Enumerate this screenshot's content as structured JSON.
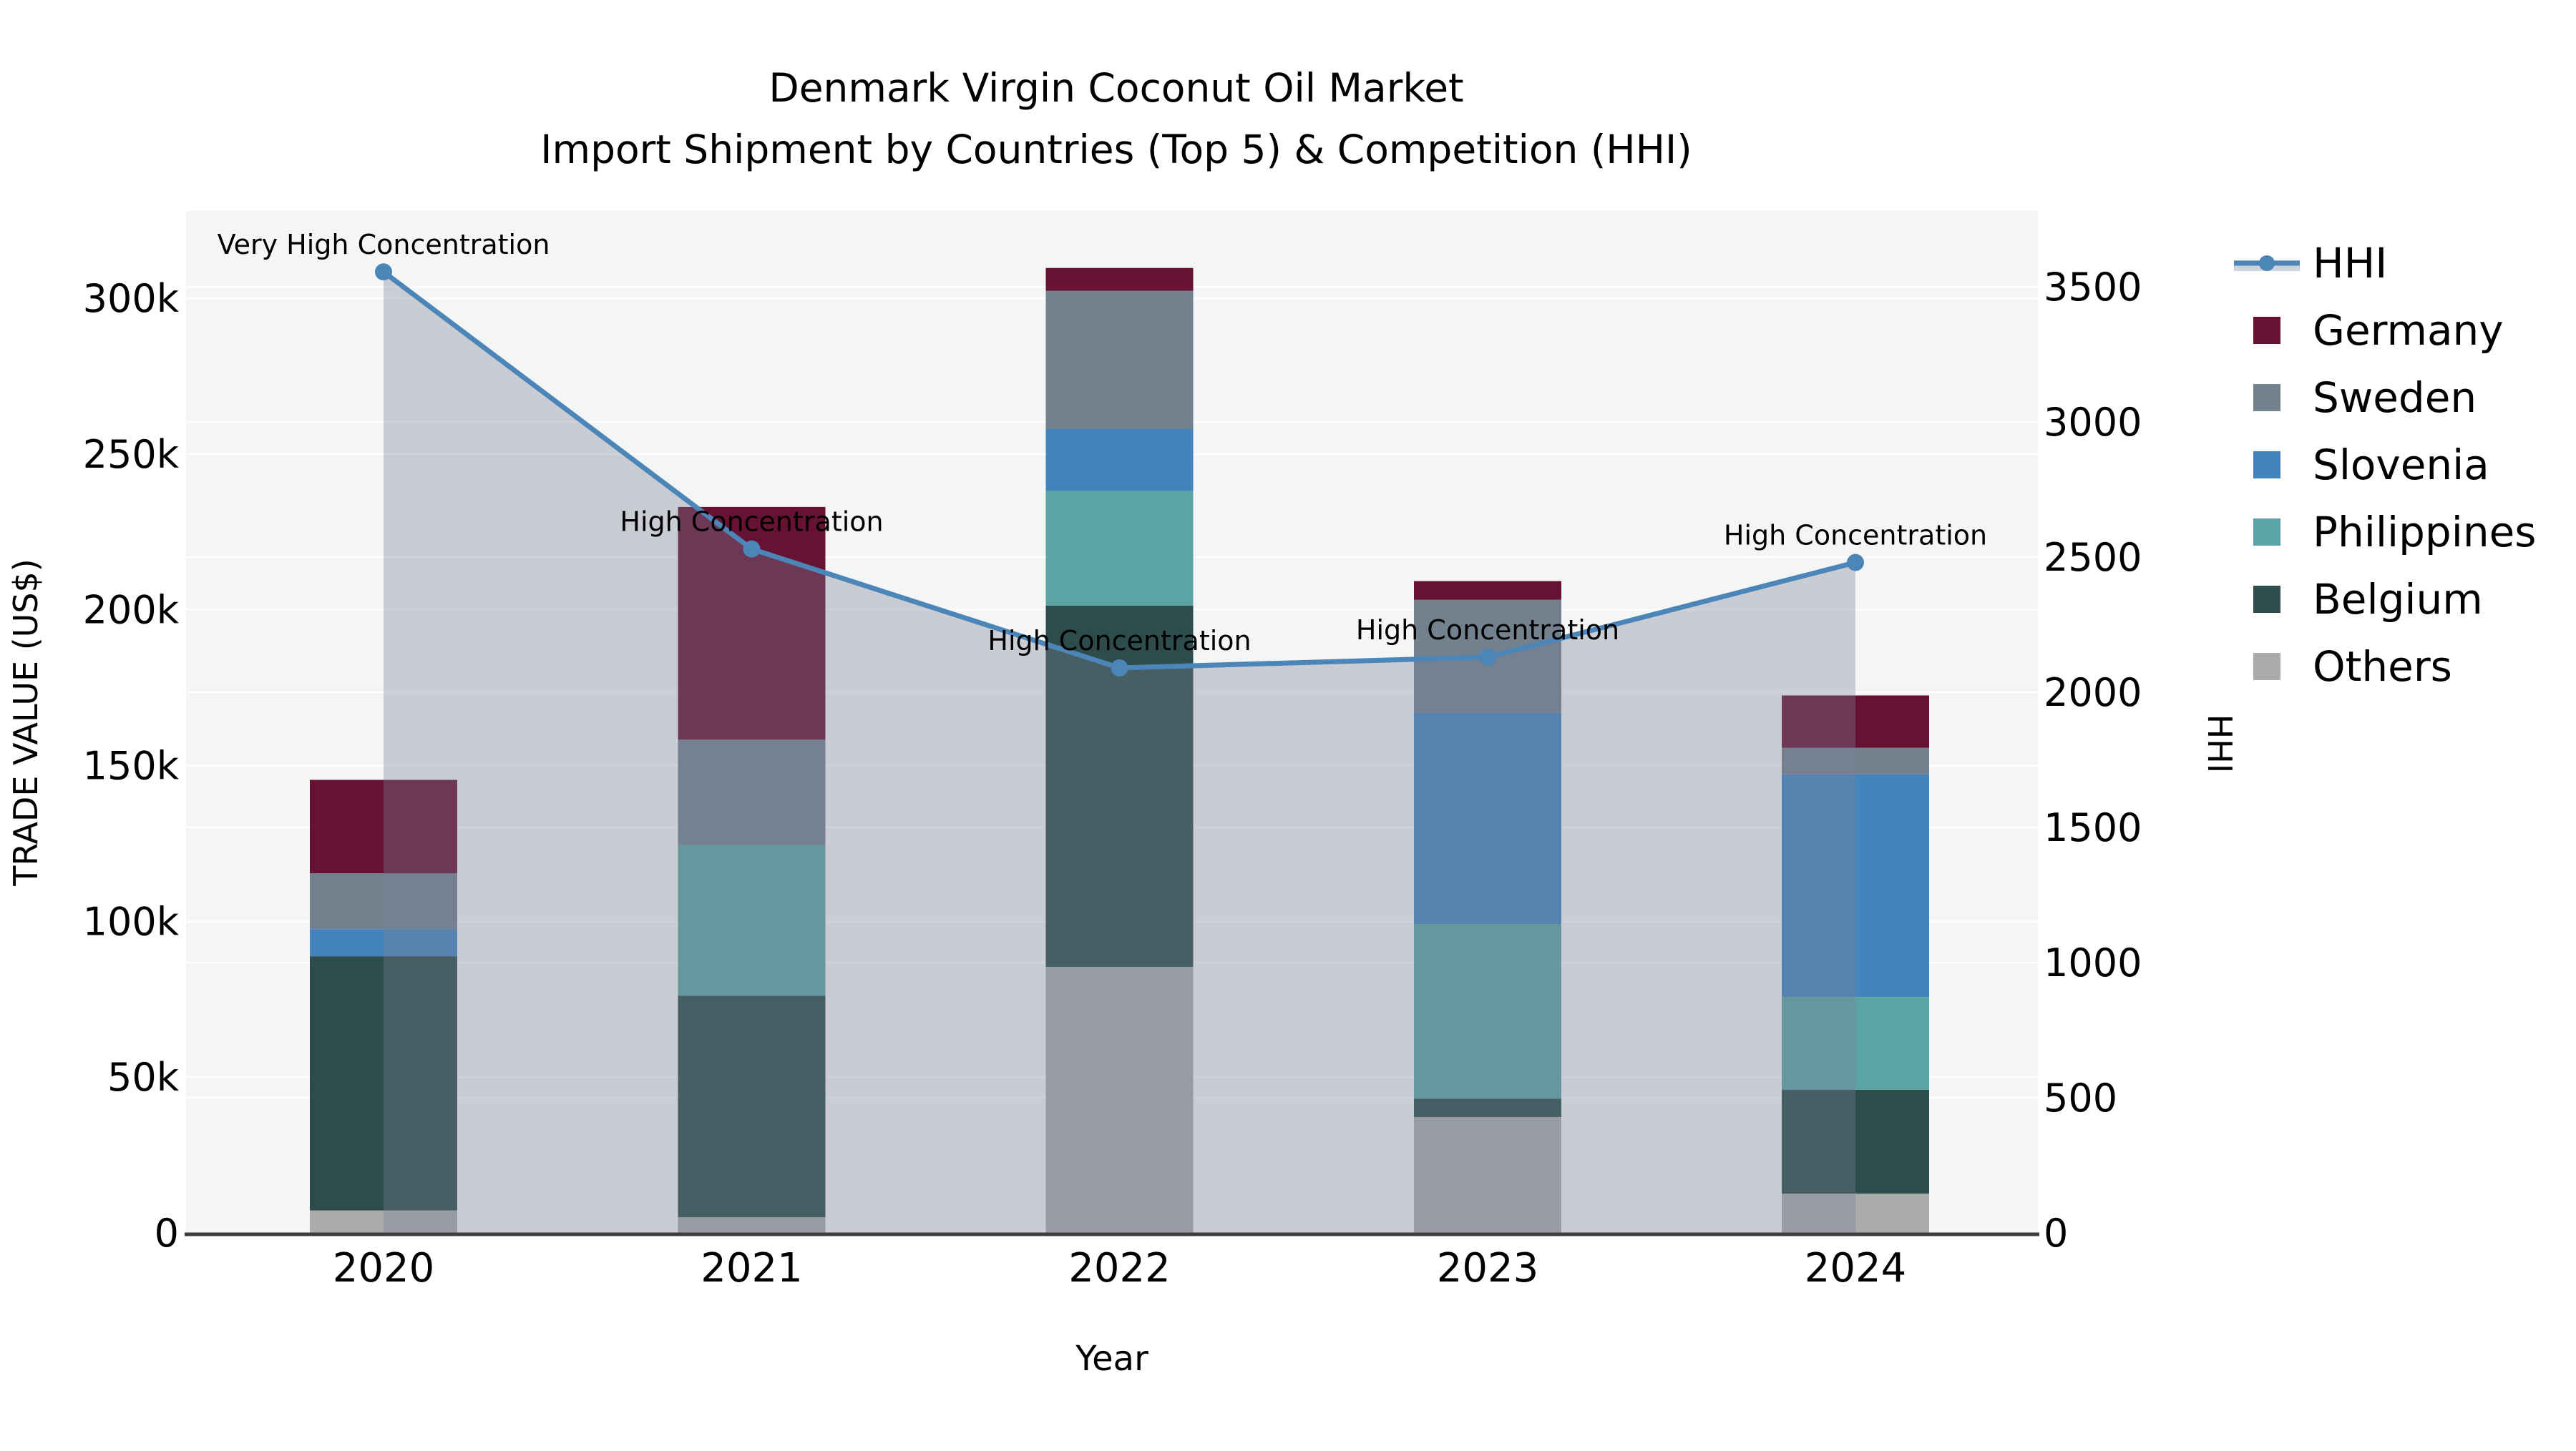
{
  "chart_data": {
    "type": "bar+line",
    "title_line1": "Denmark Virgin Coconut Oil Market",
    "title_line2": "Import Shipment by Countries (Top 5) & Competition (HHI)",
    "xlabel": "Year",
    "ylabel_left": "TRADE VALUE (US$)",
    "ylabel_right": "HHI",
    "categories": [
      "2020",
      "2021",
      "2022",
      "2023",
      "2024"
    ],
    "stack_bottom_to_top": [
      "Others",
      "Belgium",
      "Philippines",
      "Slovenia",
      "Sweden",
      "Germany"
    ],
    "series": [
      {
        "name": "Germany",
        "color": "#671233",
        "values_k": [
          30.0,
          74.7,
          7.3,
          6.0,
          16.8
        ]
      },
      {
        "name": "Sweden",
        "color": "#73818e",
        "values_k": [
          17.9,
          33.8,
          44.3,
          36.3,
          8.5
        ]
      },
      {
        "name": "Slovenia",
        "color": "#4484bd",
        "values_k": [
          8.7,
          0,
          20.0,
          67.8,
          71.5
        ]
      },
      {
        "name": "Philippines",
        "color": "#5ca3a3",
        "values_k": [
          0,
          48.4,
          36.8,
          56.0,
          29.8
        ]
      },
      {
        "name": "Belgium",
        "color": "#2d4c4b",
        "values_k": [
          81.6,
          71.1,
          115.9,
          5.9,
          33.3
        ]
      },
      {
        "name": "Others",
        "color": "#aaabaa",
        "values_k": [
          7.2,
          5.0,
          85.4,
          37.2,
          12.6
        ]
      }
    ],
    "totals_k": [
      145.4,
      233.0,
      309.7,
      209.2,
      172.5
    ],
    "hhi": {
      "name": "HHI",
      "color": "#4c86b8",
      "marker": "circle",
      "area_fill": "rgba(120,130,150,0.35)",
      "legend_band": "#ccd3da",
      "values": [
        3555,
        2530,
        2090,
        2130,
        2480
      ]
    },
    "annotations": [
      "Very High Concentration",
      "High Concentration",
      "High Concentration",
      "High Concentration",
      "High Concentration"
    ],
    "left_axis": {
      "tick_labels": [
        "0",
        "50k",
        "100k",
        "150k",
        "200k",
        "250k",
        "300k"
      ],
      "tick_values_k": [
        0,
        50,
        100,
        150,
        200,
        250,
        300
      ],
      "range_k": [
        0,
        327
      ]
    },
    "right_axis": {
      "tick_labels": [
        "0",
        "500",
        "1000",
        "1500",
        "2000",
        "2500",
        "3000",
        "3500"
      ],
      "tick_values": [
        0,
        500,
        1000,
        1500,
        2000,
        2500,
        3000,
        3500
      ],
      "range": [
        0,
        3780
      ]
    },
    "legend_order": [
      "HHI",
      "Germany",
      "Sweden",
      "Slovenia",
      "Philippines",
      "Belgium",
      "Others"
    ],
    "style": {
      "plot_bg": "#f4f5f5",
      "grid_color": "#ffffff",
      "axis_line_color": "#3d3d3d",
      "grid_on": true,
      "legend_position": "right"
    }
  }
}
